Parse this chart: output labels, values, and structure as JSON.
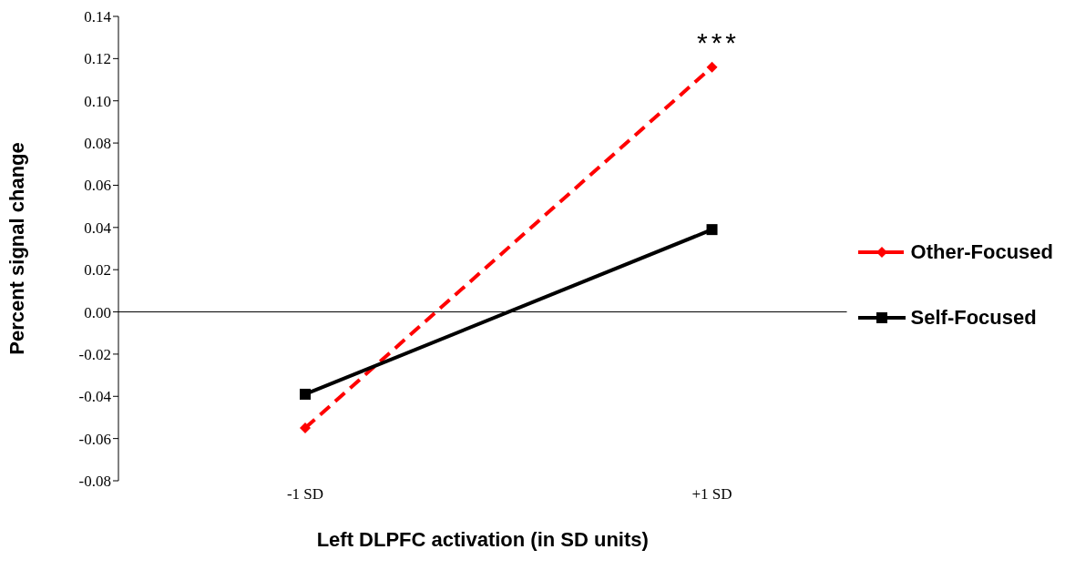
{
  "chart_data": {
    "type": "line",
    "xlabel": "Left DLPFC activation (in SD units)",
    "ylabel": "Percent signal change",
    "categories": [
      "-1 SD",
      "+1 SD"
    ],
    "series": [
      {
        "name": "Other-Focused",
        "color": "#ff0000",
        "values": [
          -0.055,
          0.116
        ],
        "marker": "diamond",
        "line_style": "dashed"
      },
      {
        "name": "Self-Focused",
        "color": "#000000",
        "values": [
          -0.039,
          0.039
        ],
        "marker": "square",
        "line_style": "solid"
      }
    ],
    "ylim": [
      -0.08,
      0.14
    ],
    "yticks": [
      {
        "value": -0.08,
        "label": "-0.08"
      },
      {
        "value": -0.06,
        "label": "-0.06"
      },
      {
        "value": -0.04,
        "label": "-0.04"
      },
      {
        "value": -0.02,
        "label": "-0.02"
      },
      {
        "value": 0,
        "label": "0.00"
      },
      {
        "value": 0.02,
        "label": "0.02"
      },
      {
        "value": 0.04,
        "label": "0.04"
      },
      {
        "value": 0.06,
        "label": "0.06"
      },
      {
        "value": 0.08,
        "label": "0.08"
      },
      {
        "value": 0.1,
        "label": "0.10"
      },
      {
        "value": 0.12,
        "label": "0.12"
      },
      {
        "value": 0.14,
        "label": "0.14"
      }
    ],
    "legend": "right",
    "annotations": [
      "***"
    ]
  }
}
